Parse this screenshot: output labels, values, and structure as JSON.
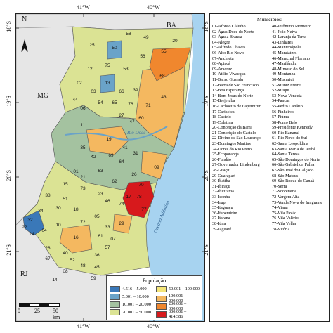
{
  "ticks": {
    "top": [
      "41°W",
      "40°W"
    ],
    "bottom": [
      "41°W",
      "40°W"
    ],
    "left": [
      "18°S",
      "19°S",
      "20°S",
      "21°S"
    ],
    "right": [
      "18°S",
      "19°S",
      "20°S",
      "21°S"
    ]
  },
  "north_label": "N",
  "states": {
    "ba": "BA",
    "mg": "MG",
    "rj": "RJ"
  },
  "water": {
    "river": "Rio Doce",
    "ocean": "Oceano Atlântico"
  },
  "scale": {
    "labels": [
      "0",
      "25",
      "50 km"
    ]
  },
  "legend": {
    "title": "População",
    "classes": [
      {
        "label": "4.516 – 5.000",
        "color": "#3a78b8"
      },
      {
        "label": "5.001 – 10.000",
        "color": "#6aa3c8"
      },
      {
        "label": "10.001 – 20.000",
        "color": "#a4c2a0"
      },
      {
        "label": "20.001 – 50.000",
        "color": "#dbe394"
      },
      {
        "label": "50.001 – 100.000",
        "color": "#f5e678"
      },
      {
        "label": "100.001 – 200.000",
        "color": "#f4b860"
      },
      {
        "label": "200.001 – 300.000",
        "color": "#f0872e"
      },
      {
        "label": "300.001 – 414.586",
        "color": "#d7191c"
      }
    ]
  },
  "municipios": {
    "title": "Municípios:",
    "col1": [
      "01-Afonso Cláudio",
      "02-Água Doce do Norte",
      "03-Águia Branca",
      "04-Alegre",
      "05-Alfredo Chaves",
      "06-Alto Rio Novo",
      "07-Anchieta",
      "08-Apiacá",
      "09-Aracruz",
      "10-Atílio Vivacqua",
      "11-Baixo Guandu",
      "12-Barra de São Francisco",
      "13-Boa Esperança",
      "14-Bom Jesus do Norte",
      "15-Brejetuba",
      "16-Cachoeiro de Itapemirim",
      "17-Cariacica",
      "18-Castelo",
      "19-Colatina",
      "20-Conceição da Barra",
      "21-Conceição do Castelo",
      "22-Divino de São Lourenço",
      "23-Domingos Martins",
      "24-Dores do Rio Preto",
      "25-Ecoporanga",
      "26-Fundão",
      "27-Governador Lindenberg",
      "28-Guaçuí",
      "29-Guarapari",
      "30-Ibatiba",
      "31-Ibiraçu",
      "32-Ibitirama",
      "33-Iconha",
      "34-Irupi",
      "35-Itaguaçu",
      "36-Itapemirim",
      "37-Itarana",
      "38-Iúna",
      "39-Jaguaré"
    ],
    "col2": [
      "40-Jerônimo Monteiro",
      "41-João Neiva",
      "42-Laranja da Terra",
      "43-Linhares",
      "44-Mantenópolis",
      "45-Marataízes",
      "46-Marechal Floriano",
      "47-Marilândia",
      "48-Mimoso do Sul",
      "49-Montanha",
      "50-Mucurici",
      "51-Muniz Freire",
      "52-Muqui",
      "53-Nova Venécia",
      "54-Pancas",
      "55-Pedro Canário",
      "56-Pinheiros",
      "57-Piúma",
      "58-Ponto Belo",
      "59-Presidente Kennedy",
      "60-Rio Bananal",
      "61-Rio Novo do Sul",
      "62-Santa Leopoldina",
      "63-Santa Maria de Jetibá",
      "64-Santa Teresa",
      "65-São Domingos do Norte",
      "66-São Gabriel da Palha",
      "67-São José do Calçado",
      "68-São Mateus",
      "69-São Roque do Canaã",
      "70-Serra",
      "71-Sooretama",
      "72-Vargem Alta",
      "73-Venda Nova do Imigrante",
      "74-Viana",
      "75-Vila Pavão",
      "76-Vila Valério",
      "77-Vila Velha",
      "78-Vitória"
    ]
  },
  "map_numbers": [
    {
      "n": "58",
      "c": "#f5e678"
    },
    {
      "n": "50",
      "c": "#6aa3c8"
    },
    {
      "n": "49",
      "c": "#dbe394"
    },
    {
      "n": "20",
      "c": "#dbe394"
    },
    {
      "n": "25",
      "c": "#dbe394"
    },
    {
      "n": "55",
      "c": "#dbe394"
    },
    {
      "n": "56",
      "c": "#dbe394"
    },
    {
      "n": "75",
      "c": "#6aa3c8"
    },
    {
      "n": "53",
      "c": "#f5e678"
    },
    {
      "n": "68",
      "c": "#f0872e"
    },
    {
      "n": "12",
      "c": "#dbe394"
    },
    {
      "n": "02",
      "c": "#a4c2a0"
    },
    {
      "n": "13",
      "c": "#a4c2a0"
    },
    {
      "n": "39",
      "c": "#dbe394"
    },
    {
      "n": "66",
      "c": "#dbe394"
    },
    {
      "n": "76",
      "c": "#a4c2a0"
    },
    {
      "n": "03",
      "c": "#a4c2a0"
    },
    {
      "n": "44",
      "c": "#a4c2a0"
    },
    {
      "n": "06",
      "c": "#6aa3c8"
    },
    {
      "n": "54",
      "c": "#a4c2a0"
    },
    {
      "n": "65",
      "c": "#6aa3c8"
    },
    {
      "n": "71",
      "c": "#dbe394"
    },
    {
      "n": "27",
      "c": "#a4c2a0"
    },
    {
      "n": "47",
      "c": "#a4c2a0"
    },
    {
      "n": "60",
      "c": "#a4c2a0"
    },
    {
      "n": "43",
      "c": "#f4b860"
    },
    {
      "n": "11",
      "c": "#dbe394"
    },
    {
      "n": "19",
      "c": "#f4b860"
    },
    {
      "n": "41",
      "c": "#a4c2a0"
    },
    {
      "n": "35",
      "c": "#a4c2a0"
    },
    {
      "n": "42",
      "c": "#a4c2a0"
    },
    {
      "n": "69",
      "c": "#a4c2a0"
    },
    {
      "n": "64",
      "c": "#dbe394"
    },
    {
      "n": "31",
      "c": "#a4c2a0"
    },
    {
      "n": "09",
      "c": "#f4b860"
    },
    {
      "n": "01",
      "c": "#dbe394"
    },
    {
      "n": "63",
      "c": "#dbe394"
    },
    {
      "n": "26",
      "c": "#a4c2a0"
    },
    {
      "n": "70",
      "c": "#d7191c"
    },
    {
      "n": "62",
      "c": "#a4c2a0"
    },
    {
      "n": "78",
      "c": "#d7191c"
    },
    {
      "n": "17",
      "c": "#d7191c"
    },
    {
      "n": "77",
      "c": "#d7191c"
    },
    {
      "n": "74",
      "c": "#f4b860"
    },
    {
      "n": "15",
      "c": "#a4c2a0"
    },
    {
      "n": "51",
      "c": "#a4c2a0"
    },
    {
      "n": "73",
      "c": "#dbe394"
    },
    {
      "n": "21",
      "c": "#a4c2a0"
    },
    {
      "n": "23",
      "c": "#dbe394"
    },
    {
      "n": "46",
      "c": "#a4c2a0"
    },
    {
      "n": "30",
      "c": "#dbe394"
    },
    {
      "n": "38",
      "c": "#dbe394"
    },
    {
      "n": "34",
      "c": "#a4c2a0"
    },
    {
      "n": "32",
      "c": "#6aa3c8"
    },
    {
      "n": "22",
      "c": "#3a78b8"
    },
    {
      "n": "24",
      "c": "#6aa3c8"
    },
    {
      "n": "18",
      "c": "#dbe394"
    },
    {
      "n": "05",
      "c": "#a4c2a0"
    },
    {
      "n": "29",
      "c": "#f4b860"
    },
    {
      "n": "72",
      "c": "#dbe394"
    },
    {
      "n": "10",
      "c": "#a4c2a0"
    },
    {
      "n": "04",
      "c": "#dbe394"
    },
    {
      "n": "16",
      "c": "#f4b860"
    },
    {
      "n": "61",
      "c": "#a4c2a0"
    },
    {
      "n": "33",
      "c": "#a4c2a0"
    },
    {
      "n": "07",
      "c": "#dbe394"
    },
    {
      "n": "57",
      "c": "#dbe394"
    },
    {
      "n": "28",
      "c": "#dbe394"
    },
    {
      "n": "67",
      "c": "#a4c2a0"
    },
    {
      "n": "40",
      "c": "#a4c2a0"
    },
    {
      "n": "52",
      "c": "#a4c2a0"
    },
    {
      "n": "36",
      "c": "#dbe394"
    },
    {
      "n": "45",
      "c": "#dbe394"
    },
    {
      "n": "48",
      "c": "#dbe394"
    },
    {
      "n": "08",
      "c": "#6aa3c8"
    },
    {
      "n": "14",
      "c": "#6aa3c8"
    },
    {
      "n": "59",
      "c": "#a4c2a0"
    }
  ]
}
